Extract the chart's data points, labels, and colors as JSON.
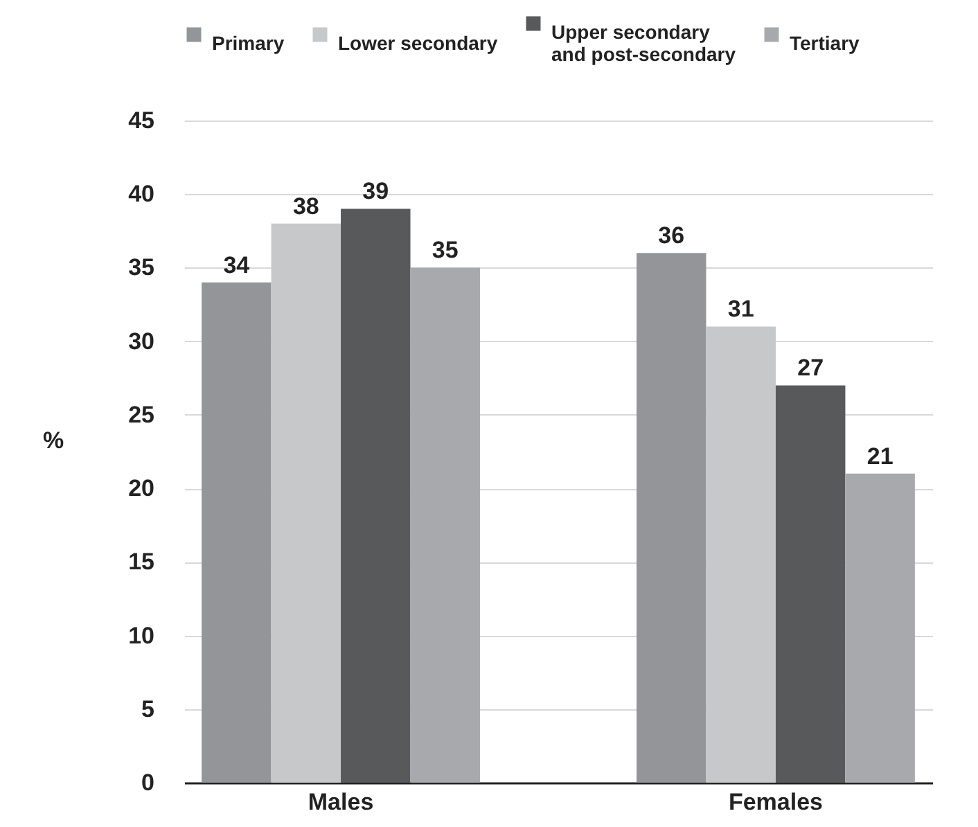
{
  "chart_data": {
    "type": "bar",
    "categories": [
      "Males",
      "Females"
    ],
    "ylabel": "%",
    "ylim": [
      0,
      45
    ],
    "yticks": [
      0,
      5,
      10,
      15,
      20,
      25,
      30,
      35,
      40,
      45
    ],
    "grid": "y",
    "legend": "top",
    "data_labels": true,
    "series": [
      {
        "name": "Primary",
        "color": "#939598",
        "values": [
          34,
          36
        ]
      },
      {
        "name": "Lower secondary",
        "color": "#c7c8ca",
        "values": [
          38,
          31
        ]
      },
      {
        "name": "Upper secondary and post-secondary",
        "color": "#58595b",
        "values": [
          39,
          27
        ]
      },
      {
        "name": "Tertiary",
        "color": "#a7a9ac",
        "values": [
          35,
          21
        ]
      }
    ]
  }
}
